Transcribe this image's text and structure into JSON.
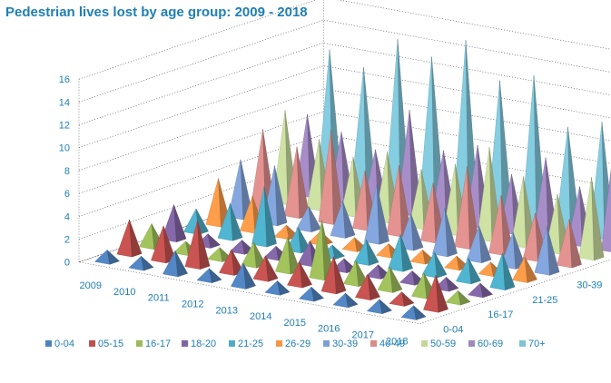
{
  "chart_data": {
    "type": "3d-pyramid",
    "title": "Pedestrian lives lost by age group: 2009 - 2018",
    "xlabel": "",
    "ylabel": "",
    "zlabel": "",
    "ylim": [
      0,
      16
    ],
    "yticks": [
      "0",
      "2",
      "4",
      "6",
      "8",
      "10",
      "12",
      "14",
      "16"
    ],
    "categories": [
      "2009",
      "2010",
      "2011",
      "2012",
      "2013",
      "2014",
      "2015",
      "2016",
      "2017",
      "2018"
    ],
    "series": [
      {
        "name": "0-04",
        "color": "#4f81bd",
        "values": [
          1,
          1,
          2,
          1,
          2,
          1,
          1,
          1,
          1,
          1
        ]
      },
      {
        "name": "05-15",
        "color": "#c0504d",
        "values": [
          3,
          3,
          4,
          2,
          2,
          2,
          3,
          2,
          1,
          3
        ]
      },
      {
        "name": "16-17",
        "color": "#9bbb59",
        "values": [
          2,
          1,
          1,
          2,
          3,
          5,
          2,
          2,
          2,
          1
        ]
      },
      {
        "name": "18-20",
        "color": "#8064a2",
        "values": [
          3,
          1,
          1,
          1,
          2,
          1,
          1,
          1,
          1,
          1
        ]
      },
      {
        "name": "21-25",
        "color": "#4bacc6",
        "values": [
          2,
          3,
          5,
          2,
          1,
          2,
          3,
          2,
          2,
          3
        ]
      },
      {
        "name": "26-29",
        "color": "#f79646",
        "values": [
          4,
          3,
          1,
          1,
          1,
          1,
          1,
          1,
          1,
          2
        ]
      },
      {
        "name": "30-39",
        "color": "#7f9fd4",
        "values": [
          5,
          5,
          2,
          3,
          5,
          3,
          4,
          3,
          3,
          4
        ]
      },
      {
        "name": "40-49",
        "color": "#d98c8a",
        "values": [
          7,
          6,
          8,
          5,
          6,
          5,
          7,
          5,
          4,
          4
        ]
      },
      {
        "name": "50-59",
        "color": "#c4d79b",
        "values": [
          8,
          6,
          5,
          6,
          5,
          6,
          8,
          6,
          5,
          7
        ]
      },
      {
        "name": "60-69",
        "color": "#9f87bf",
        "values": [
          7,
          6,
          5,
          9,
          6,
          7,
          5,
          7,
          5,
          9
        ]
      },
      {
        "name": "70+",
        "color": "#7fc3d6",
        "values": [
          12,
          11,
          14,
          13,
          15,
          12,
          13,
          9,
          10,
          12
        ]
      }
    ],
    "legend_position": "bottom",
    "grid": true
  }
}
